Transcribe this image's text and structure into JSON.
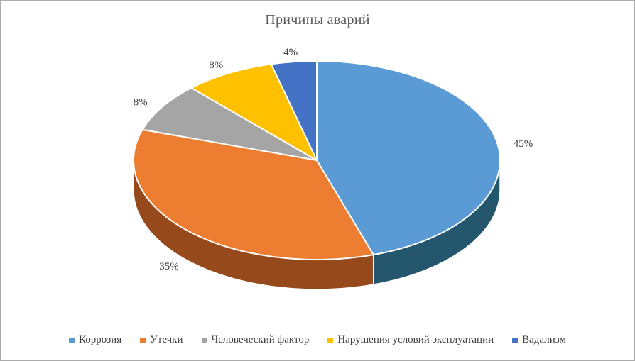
{
  "chart_data": {
    "type": "pie",
    "effect": "3d",
    "title": "Причины аварий",
    "labels": [
      "Коррозия",
      "Утечки",
      "Человеческий фактор",
      "Нарушения условий эксплуатации",
      "Вадализм"
    ],
    "values": [
      45,
      35,
      8,
      8,
      4
    ],
    "percent_labels": [
      "45%",
      "35%",
      "8%",
      "8%",
      "4%"
    ],
    "colors": [
      "#5B9BD5",
      "#ED7D31",
      "#A5A5A5",
      "#FFC000",
      "#4472C4"
    ],
    "side_colors": [
      "#24566E",
      "#96491A",
      "#6E6E6E",
      "#B38600",
      "#2A4B82"
    ],
    "legend_position": "bottom",
    "title_color": "#595959",
    "label_color": "#404040"
  }
}
